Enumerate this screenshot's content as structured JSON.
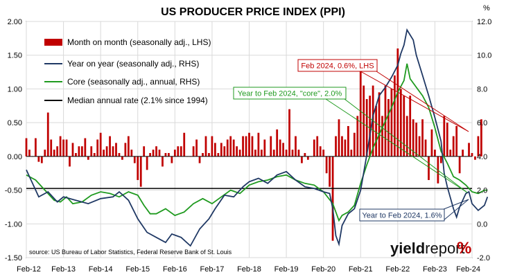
{
  "chart_data": {
    "type": "bar+line",
    "title": "US PRODUCER PRICE INDEX (PPI)",
    "right_unit": "%",
    "left_axis": {
      "min": -1.5,
      "max": 2.0,
      "ticks": [
        "2.00",
        "1.50",
        "1.00",
        "0.50",
        "0.00",
        "-0.50",
        "-1.00",
        "-1.50"
      ]
    },
    "right_axis": {
      "min": -2.0,
      "max": 12.0,
      "ticks": [
        "12.0",
        "10.0",
        "8.0",
        "6.0",
        "4.0",
        "2.0",
        "0.0",
        "-2.0"
      ]
    },
    "x_ticks": [
      "Feb-12",
      "Feb-13",
      "Feb-14",
      "Feb-15",
      "Feb-16",
      "Feb-17",
      "Feb-18",
      "Feb-19",
      "Feb-20",
      "Feb-21",
      "Feb-22",
      "Feb-23",
      "Feb-24"
    ],
    "x_start": "Feb-12",
    "x_end": "Feb-24",
    "series": [
      {
        "name": "Month on month (seasonally adj., LHS)",
        "kind": "bar",
        "color": "#c00000",
        "values": [
          0.27,
          0.1,
          0.0,
          0.27,
          -0.08,
          -0.1,
          0.1,
          0.65,
          0.25,
          0.1,
          0.15,
          0.3,
          0.25,
          0.25,
          -0.15,
          0.2,
          0.05,
          0.15,
          0.15,
          0.27,
          -0.05,
          0.15,
          0.05,
          0.25,
          0.35,
          0.1,
          0.15,
          0.3,
          0.15,
          0.2,
          0.05,
          -0.05,
          0.2,
          0.3,
          0.1,
          -0.1,
          -0.35,
          -0.45,
          0.15,
          -0.2,
          0.05,
          0.1,
          0.15,
          0.1,
          -0.15,
          0.05,
          0.05,
          -0.1,
          0.1,
          0.15,
          0.15,
          0.35,
          0.0,
          0.0,
          0.15,
          0.25,
          -0.1,
          0.05,
          0.3,
          0.05,
          0.3,
          0.2,
          0.05,
          0.2,
          0.15,
          0.25,
          0.3,
          0.25,
          0.15,
          0.1,
          0.3,
          0.3,
          0.35,
          0.3,
          0.1,
          0.35,
          0.1,
          0.25,
          0.0,
          0.3,
          0.1,
          0.4,
          0.25,
          0.2,
          0.1,
          0.7,
          0.1,
          0.3,
          0.1,
          -0.1,
          0.05,
          -0.05,
          0.0,
          0.25,
          0.3,
          0.15,
          0.1,
          -0.25,
          -0.45,
          -1.25,
          0.3,
          0.55,
          0.3,
          0.25,
          0.45,
          0.1,
          0.35,
          0.6,
          1.3,
          1.05,
          0.85,
          0.9,
          1.05,
          0.75,
          0.95,
          0.6,
          1.05,
          0.85,
          1.0,
          1.2,
          1.6,
          1.0,
          0.9,
          0.6,
          0.9,
          0.55,
          0.5,
          0.3,
          0.55,
          0.25,
          -0.35,
          0.4,
          0.1,
          -0.4,
          -0.1,
          0.6,
          0.5,
          0.1,
          0.3,
          0.45,
          -0.25,
          0.1,
          0.0,
          0.2,
          0.05,
          -0.05,
          0.3,
          0.55
        ]
      },
      {
        "name": "Year on year (seasonally adj., RHS)",
        "kind": "line",
        "color": "#1f3864",
        "points": [
          [
            0,
            3.2
          ],
          [
            4,
            1.6
          ],
          [
            7,
            1.9
          ],
          [
            10,
            1.3
          ],
          [
            12,
            1.6
          ],
          [
            16,
            1.4
          ],
          [
            20,
            1.2
          ],
          [
            24,
            1.5
          ],
          [
            28,
            1.6
          ],
          [
            30,
            1.9
          ],
          [
            33,
            1.4
          ],
          [
            36,
            0.3
          ],
          [
            39,
            -0.5
          ],
          [
            42,
            -0.8
          ],
          [
            45,
            -1.1
          ],
          [
            47,
            -0.6
          ],
          [
            50,
            -0.8
          ],
          [
            53,
            -1.3
          ],
          [
            56,
            -0.3
          ],
          [
            59,
            0.3
          ],
          [
            61,
            0.9
          ],
          [
            64,
            1.7
          ],
          [
            67,
            1.6
          ],
          [
            70,
            2.2
          ],
          [
            72,
            2.5
          ],
          [
            75,
            2.7
          ],
          [
            78,
            2.4
          ],
          [
            81,
            2.9
          ],
          [
            84,
            3.1
          ],
          [
            87,
            2.6
          ],
          [
            90,
            2.2
          ],
          [
            93,
            2.1
          ],
          [
            96,
            1.9
          ],
          [
            98,
            1.8
          ],
          [
            99,
            0.9
          ],
          [
            100,
            -0.7
          ],
          [
            101,
            -1.2
          ],
          [
            102,
            -0.1
          ],
          [
            104,
            0.6
          ],
          [
            106,
            0.9
          ],
          [
            108,
            2.0
          ],
          [
            110,
            4.1
          ],
          [
            112,
            6.4
          ],
          [
            114,
            7.6
          ],
          [
            116,
            8.1
          ],
          [
            118,
            8.7
          ],
          [
            120,
            9.4
          ],
          [
            121,
            10.1
          ],
          [
            122,
            10.6
          ],
          [
            123,
            11.5
          ],
          [
            124,
            11.2
          ],
          [
            125,
            10.9
          ],
          [
            126,
            10.0
          ],
          [
            128,
            8.8
          ],
          [
            130,
            7.6
          ],
          [
            132,
            6.3
          ],
          [
            134,
            4.9
          ],
          [
            135,
            3.0
          ],
          [
            136,
            2.2
          ],
          [
            138,
            0.9
          ],
          [
            139,
            0.4
          ],
          [
            140,
            1.0
          ],
          [
            142,
            1.8
          ],
          [
            143,
            1.9
          ],
          [
            144,
            1.2
          ],
          [
            146,
            0.8
          ],
          [
            148,
            1.1
          ],
          [
            149,
            1.6
          ]
        ]
      },
      {
        "name": "Core (seasonally adj., annual, RHS)",
        "kind": "line",
        "color": "#1f9a1f",
        "points": [
          [
            0,
            2.9
          ],
          [
            3,
            2.6
          ],
          [
            6,
            2.0
          ],
          [
            9,
            1.4
          ],
          [
            11,
            1.3
          ],
          [
            13,
            1.6
          ],
          [
            15,
            1.2
          ],
          [
            18,
            1.3
          ],
          [
            21,
            1.7
          ],
          [
            24,
            1.9
          ],
          [
            27,
            1.8
          ],
          [
            30,
            1.6
          ],
          [
            33,
            1.9
          ],
          [
            36,
            1.7
          ],
          [
            38,
            1.1
          ],
          [
            40,
            0.6
          ],
          [
            42,
            0.6
          ],
          [
            45,
            0.9
          ],
          [
            48,
            0.5
          ],
          [
            51,
            0.7
          ],
          [
            54,
            1.2
          ],
          [
            57,
            1.5
          ],
          [
            60,
            1.2
          ],
          [
            63,
            1.6
          ],
          [
            66,
            2.0
          ],
          [
            69,
            1.8
          ],
          [
            72,
            2.3
          ],
          [
            75,
            2.5
          ],
          [
            78,
            2.6
          ],
          [
            81,
            2.8
          ],
          [
            84,
            2.9
          ],
          [
            87,
            2.6
          ],
          [
            90,
            2.4
          ],
          [
            93,
            2.3
          ],
          [
            96,
            1.9
          ],
          [
            99,
            1.2
          ],
          [
            101,
            0.2
          ],
          [
            102,
            0.5
          ],
          [
            104,
            0.7
          ],
          [
            106,
            1.1
          ],
          [
            108,
            2.4
          ],
          [
            110,
            3.5
          ],
          [
            112,
            4.5
          ],
          [
            114,
            5.3
          ],
          [
            116,
            6.1
          ],
          [
            118,
            6.9
          ],
          [
            120,
            7.8
          ],
          [
            122,
            8.5
          ],
          [
            123,
            9.5
          ],
          [
            124,
            8.6
          ],
          [
            126,
            8.1
          ],
          [
            128,
            7.6
          ],
          [
            130,
            6.9
          ],
          [
            132,
            5.7
          ],
          [
            134,
            4.3
          ],
          [
            136,
            3.6
          ],
          [
            138,
            2.8
          ],
          [
            140,
            2.6
          ],
          [
            142,
            2.3
          ],
          [
            144,
            1.9
          ],
          [
            146,
            1.8
          ],
          [
            148,
            2.0
          ],
          [
            149,
            2.0
          ]
        ]
      },
      {
        "name": "Median annual rate (2.1% since 1994)",
        "kind": "hline",
        "color": "#000000",
        "value_rhs": 2.1
      }
    ],
    "annotations": [
      {
        "text": "Feb 2024, 0.6%, LHS",
        "color": "#c00000"
      },
      {
        "text": "Year to Feb 2024, \"core\", 2.0%",
        "color": "#1f9a1f"
      },
      {
        "text": "Year to Feb 2024, 1.6%",
        "color": "#1f3864"
      }
    ],
    "source": "source: US Bureau of Labor Statistics, Federal Reserve Bank of St. Louis",
    "brand": {
      "part1": "yield",
      "part2": "report",
      "symbol": "%"
    }
  }
}
